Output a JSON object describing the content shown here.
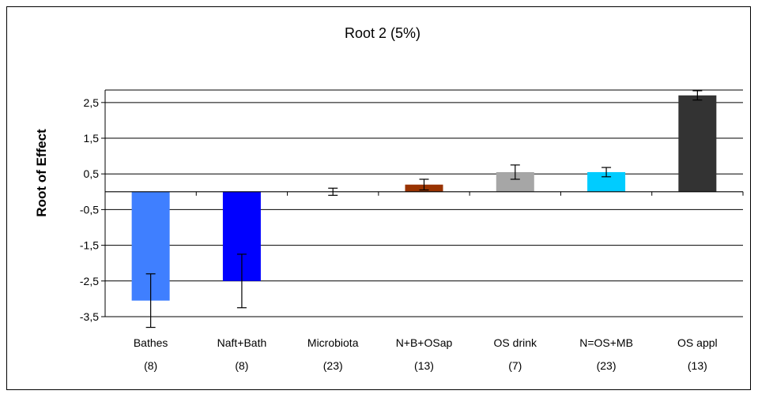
{
  "chart_data": {
    "type": "bar",
    "title": "Root 2 (5%)",
    "ylabel": "Root of Effect",
    "xlabel": "",
    "ylim": [
      -3.5,
      2.5
    ],
    "yticks": [
      "2,5",
      "1,5",
      "0,5",
      "-0,5",
      "-1,5",
      "-2,5",
      "-3,5"
    ],
    "ytick_values": [
      2.5,
      1.5,
      0.5,
      -0.5,
      -1.5,
      -2.5,
      -3.5
    ],
    "grid": true,
    "legend": "none",
    "categories": [
      {
        "name": "Bathes",
        "n": "(8)"
      },
      {
        "name": "Naft+Bath",
        "n": "(8)"
      },
      {
        "name": "Microbiota",
        "n": "(23)"
      },
      {
        "name": "N+B+OSap",
        "n": "(13)"
      },
      {
        "name": "OS drink",
        "n": "(7)"
      },
      {
        "name": "N=OS+MB",
        "n": "(23)"
      },
      {
        "name": "OS appl",
        "n": "(13)"
      }
    ],
    "values": [
      -3.05,
      -2.5,
      0.0,
      0.2,
      0.55,
      0.55,
      2.7
    ],
    "errors": [
      0.75,
      0.75,
      0.1,
      0.15,
      0.2,
      0.13,
      0.13
    ],
    "colors": [
      "#3f7fff",
      "#0000ff",
      "#ffffff",
      "#993300",
      "#a6a6a6",
      "#00ccff",
      "#333333"
    ]
  }
}
